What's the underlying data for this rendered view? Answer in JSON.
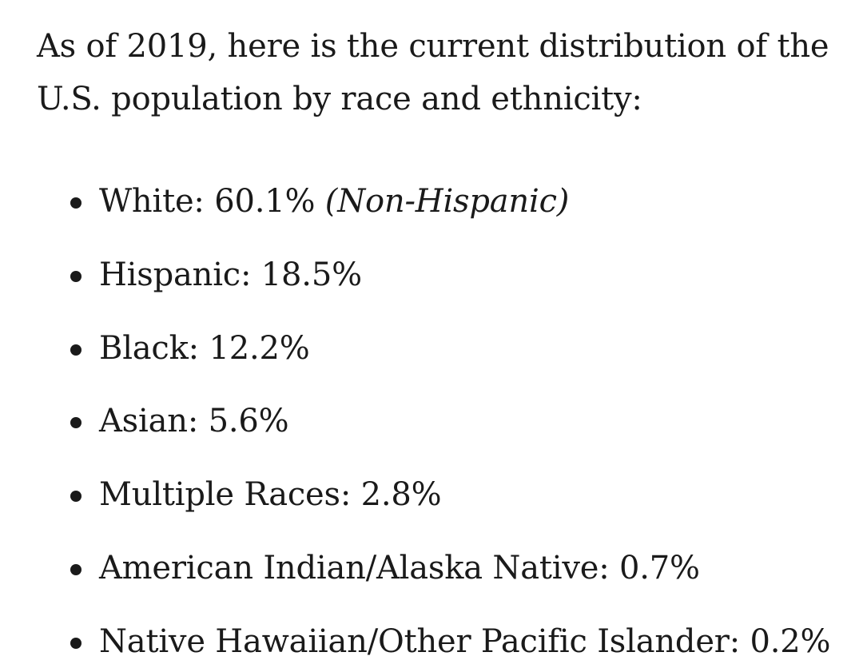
{
  "intro": "As of 2019, here is the current distribution of the U.S. population by race and ethnicity:",
  "items": [
    {
      "label": "White: 60.1%",
      "note": "(Non-Hispanic)"
    },
    {
      "label": "Hispanic: 18.5%"
    },
    {
      "label": "Black: 12.2%"
    },
    {
      "label": "Asian: 5.6%"
    },
    {
      "label": "Multiple Races: 2.8%"
    },
    {
      "label": "American Indian/Alaska Native: 0.7%"
    },
    {
      "label": "Native Hawaiian/Other Pacific Islander: 0.2%"
    }
  ]
}
